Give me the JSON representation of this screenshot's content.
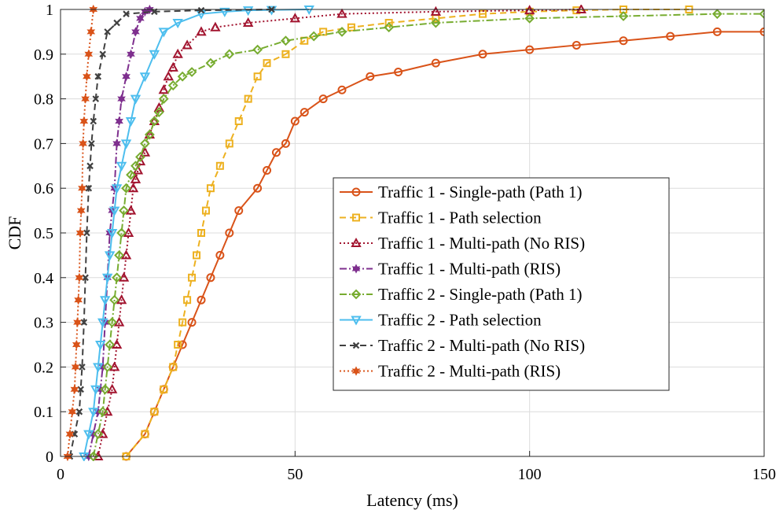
{
  "chart_data": {
    "type": "line",
    "title": "",
    "xlabel": "Latency (ms)",
    "ylabel": "CDF",
    "xlim": [
      0,
      150
    ],
    "ylim": [
      0,
      1
    ],
    "xticks": [
      0,
      50,
      100,
      150
    ],
    "xtick_labels": [
      "0",
      "50",
      "100",
      "150"
    ],
    "yticks": [
      0,
      0.1,
      0.2,
      0.3,
      0.4,
      0.5,
      0.6,
      0.7,
      0.8,
      0.9,
      1
    ],
    "ytick_labels": [
      "0",
      "0.1",
      "0.2",
      "0.3",
      "0.4",
      "0.5",
      "0.6",
      "0.7",
      "0.8",
      "0.9",
      "1"
    ],
    "grid": true,
    "legend_position": "center-right",
    "series": [
      {
        "name": "Traffic 1 - Single-path (Path 1)",
        "color": "#D95319",
        "dash": "solid",
        "marker": "circle",
        "x": [
          14,
          18,
          20,
          22,
          24,
          26,
          28,
          30,
          32,
          34,
          36,
          38,
          42,
          44,
          46,
          48,
          50,
          52,
          56,
          60,
          66,
          72,
          80,
          90,
          100,
          110,
          120,
          130,
          140,
          150
        ],
        "y": [
          0,
          0.05,
          0.1,
          0.15,
          0.2,
          0.25,
          0.3,
          0.35,
          0.4,
          0.45,
          0.5,
          0.55,
          0.6,
          0.64,
          0.68,
          0.7,
          0.75,
          0.77,
          0.8,
          0.82,
          0.85,
          0.86,
          0.88,
          0.9,
          0.91,
          0.92,
          0.93,
          0.94,
          0.95,
          0.95
        ]
      },
      {
        "name": "Traffic 1 - Path selection",
        "color": "#EDB120",
        "dash": "dashed",
        "marker": "square",
        "x": [
          14,
          18,
          20,
          22,
          24,
          25,
          26,
          27,
          28,
          29,
          30,
          31,
          32,
          34,
          36,
          38,
          40,
          42,
          44,
          48,
          52,
          56,
          62,
          70,
          80,
          90,
          100,
          110,
          120,
          134
        ],
        "y": [
          0,
          0.05,
          0.1,
          0.15,
          0.2,
          0.25,
          0.3,
          0.35,
          0.4,
          0.45,
          0.5,
          0.55,
          0.6,
          0.65,
          0.7,
          0.75,
          0.8,
          0.85,
          0.88,
          0.9,
          0.93,
          0.95,
          0.96,
          0.97,
          0.98,
          0.99,
          0.995,
          0.998,
          1.0,
          1.0
        ]
      },
      {
        "name": "Traffic 1 - Multi-path (No RIS)",
        "color": "#A2142F",
        "dash": "dotted",
        "marker": "triangle-up",
        "x": [
          8,
          9,
          10,
          11,
          11.5,
          12,
          12.5,
          13,
          13.5,
          14,
          14.5,
          15,
          15.5,
          16,
          16.5,
          17,
          18,
          19,
          20,
          21,
          22,
          23,
          24,
          25,
          27,
          30,
          33,
          40,
          50,
          60,
          80,
          100,
          111
        ],
        "y": [
          0,
          0.05,
          0.1,
          0.15,
          0.2,
          0.25,
          0.3,
          0.35,
          0.4,
          0.45,
          0.5,
          0.55,
          0.6,
          0.62,
          0.64,
          0.66,
          0.68,
          0.72,
          0.75,
          0.78,
          0.82,
          0.85,
          0.87,
          0.9,
          0.92,
          0.95,
          0.96,
          0.97,
          0.98,
          0.99,
          0.995,
          0.998,
          1.0
        ]
      },
      {
        "name": "Traffic 1 - Multi-path (RIS)",
        "color": "#7E2F8E",
        "dash": "dashdot",
        "marker": "hexagram",
        "x": [
          6,
          7,
          8,
          8.5,
          9,
          9.5,
          10,
          10.5,
          11,
          11.5,
          12,
          12.5,
          13,
          14,
          15,
          16,
          17,
          18,
          19
        ],
        "y": [
          0,
          0.05,
          0.1,
          0.15,
          0.2,
          0.3,
          0.4,
          0.5,
          0.55,
          0.6,
          0.7,
          0.75,
          0.8,
          0.85,
          0.9,
          0.95,
          0.98,
          0.995,
          1.0
        ]
      },
      {
        "name": "Traffic 2 - Single-path (Path 1)",
        "color": "#77AC30",
        "dash": "dashdot",
        "marker": "diamond",
        "x": [
          7,
          8,
          9,
          9.5,
          10,
          10.5,
          11,
          11.5,
          12,
          12.5,
          13,
          13.5,
          14,
          15,
          16,
          17,
          18,
          19,
          20,
          21,
          22,
          24,
          26,
          28,
          32,
          36,
          42,
          48,
          54,
          60,
          70,
          80,
          100,
          120,
          140,
          150
        ],
        "y": [
          0,
          0.05,
          0.1,
          0.15,
          0.2,
          0.25,
          0.3,
          0.35,
          0.4,
          0.45,
          0.5,
          0.55,
          0.6,
          0.63,
          0.65,
          0.67,
          0.7,
          0.72,
          0.75,
          0.77,
          0.8,
          0.83,
          0.85,
          0.86,
          0.88,
          0.9,
          0.91,
          0.93,
          0.94,
          0.95,
          0.96,
          0.97,
          0.98,
          0.985,
          0.99,
          0.99
        ]
      },
      {
        "name": "Traffic 2 - Path selection",
        "color": "#4DBEEE",
        "dash": "solid",
        "marker": "triangle-down",
        "x": [
          5,
          6,
          7,
          7.5,
          8,
          8.5,
          9,
          9.5,
          10,
          10.5,
          11,
          11.5,
          12,
          13,
          14,
          15,
          16,
          18,
          20,
          22,
          25,
          30,
          35,
          40,
          45,
          53
        ],
        "y": [
          0,
          0.05,
          0.1,
          0.15,
          0.2,
          0.25,
          0.3,
          0.35,
          0.4,
          0.45,
          0.5,
          0.55,
          0.6,
          0.65,
          0.7,
          0.75,
          0.8,
          0.85,
          0.9,
          0.95,
          0.97,
          0.99,
          0.995,
          0.998,
          0.999,
          1.0
        ]
      },
      {
        "name": "Traffic 2 - Multi-path (No RIS)",
        "color": "#404040",
        "dash": "dashed",
        "marker": "x",
        "x": [
          2,
          3,
          4,
          4.3,
          4.6,
          5,
          5.3,
          5.6,
          6,
          6.3,
          6.6,
          7,
          7.5,
          8,
          9,
          10,
          12,
          14,
          20,
          30,
          45
        ],
        "y": [
          0,
          0.05,
          0.1,
          0.15,
          0.2,
          0.3,
          0.4,
          0.5,
          0.6,
          0.65,
          0.7,
          0.75,
          0.8,
          0.85,
          0.9,
          0.95,
          0.97,
          0.99,
          0.995,
          0.998,
          1.0
        ]
      },
      {
        "name": "Traffic 2 - Multi-path (RIS)",
        "color": "#D95319",
        "dash": "dotted",
        "marker": "hexagram",
        "x": [
          1.5,
          2,
          2.5,
          3,
          3.2,
          3.4,
          3.6,
          3.8,
          4,
          4.2,
          4.4,
          4.6,
          4.8,
          5,
          5.3,
          5.6,
          6,
          6.5,
          7
        ],
        "y": [
          0,
          0.05,
          0.1,
          0.15,
          0.2,
          0.25,
          0.3,
          0.35,
          0.4,
          0.5,
          0.55,
          0.6,
          0.7,
          0.75,
          0.8,
          0.85,
          0.9,
          0.95,
          1.0
        ]
      }
    ]
  }
}
